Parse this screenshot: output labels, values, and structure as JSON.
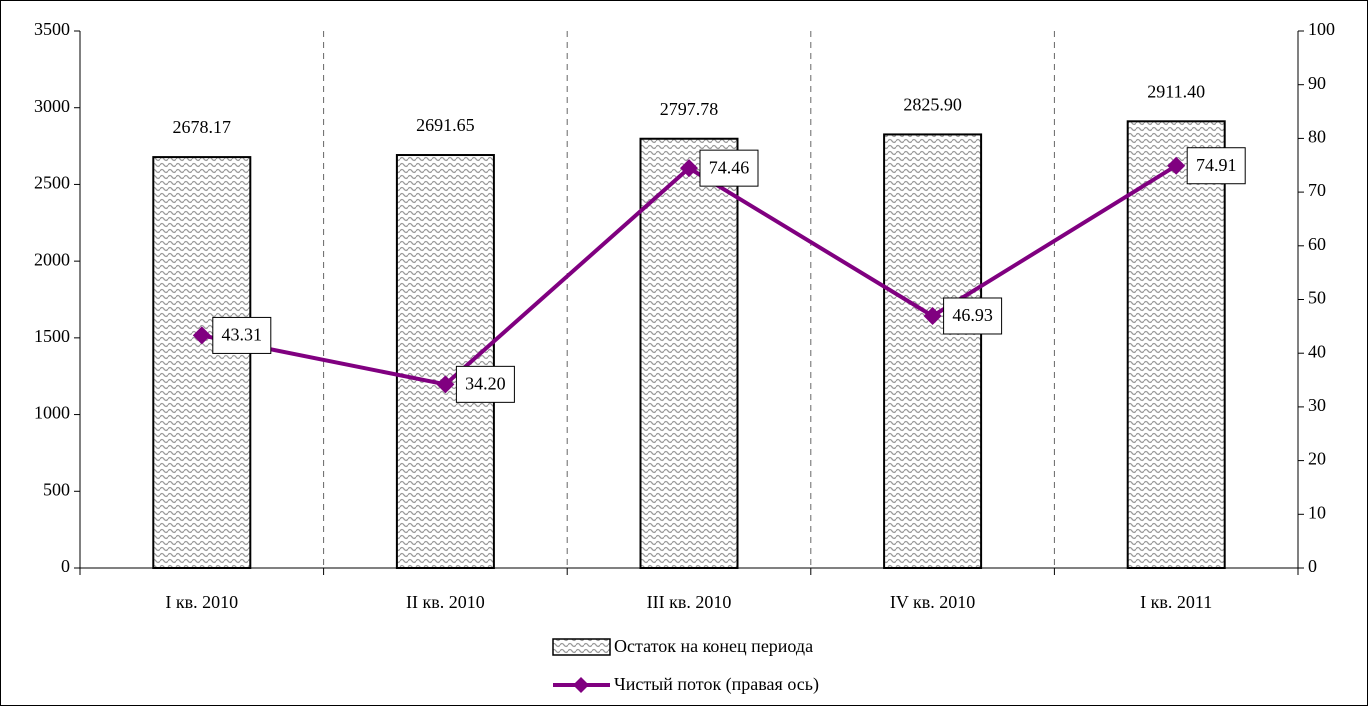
{
  "chart_data": {
    "type": "bar_line",
    "categories": [
      "I кв. 2010",
      "II кв. 2010",
      "III кв. 2010",
      "IV кв. 2010",
      "I кв. 2011"
    ],
    "series": [
      {
        "name": "Остаток на конец периода",
        "type": "bar",
        "color": "#a0a0a0",
        "values": [
          2678.17,
          2691.65,
          2797.78,
          2825.9,
          2911.4
        ],
        "value_labels": [
          "2678.17",
          "2691.65",
          "2797.78",
          "2825.90",
          "2911.40"
        ]
      },
      {
        "name": "Чистый поток (правая ось)",
        "type": "line",
        "axis": "y2",
        "color": "#800080",
        "values": [
          43.31,
          34.2,
          74.46,
          46.93,
          74.91
        ],
        "value_labels": [
          "43.31",
          "34.20",
          "74.46",
          "46.93",
          "74.91"
        ]
      }
    ],
    "ylim": [
      0,
      3500
    ],
    "yticks": [
      0,
      500,
      1000,
      1500,
      2000,
      2500,
      3000,
      3500
    ],
    "y2lim": [
      0,
      100
    ],
    "y2ticks": [
      0,
      10,
      20,
      30,
      40,
      50,
      60,
      70,
      80,
      90,
      100
    ],
    "legend": "bottom"
  }
}
